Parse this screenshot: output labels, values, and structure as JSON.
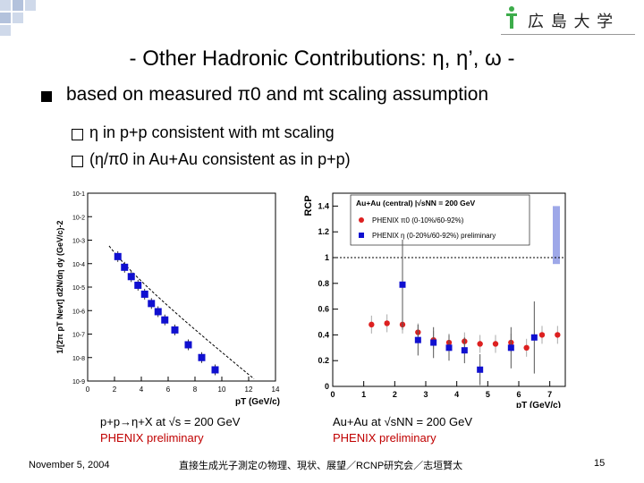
{
  "slide": {
    "title": "- Other Hadronic Contributions: η, η’, ω -",
    "bullet": "based on measured π0 and mt scaling assumption",
    "sub_bullets": [
      "η in p+p consistent with mt scaling",
      "(η/π0 in Au+Au consistent as in p+p)"
    ],
    "logo_text": "広 島 大 学",
    "left_caption": "p+p→η+X at √s = 200 GeV",
    "left_caption_sub": "PHENIX preliminary",
    "right_caption": "Au+Au at √sNN = 200 GeV",
    "right_caption_sub": "PHENIX preliminary",
    "footer_date": "November 5, 2004",
    "footer_center": "直接生成光子測定の物理、現状、展望／RCNP研究会／志垣賢太",
    "page_number": "15"
  },
  "colors": {
    "accent_square": "#cfd9ea",
    "accent_square_dark": "#b3c2dc",
    "logo_green": "#3cac4a",
    "marker_blue": "#1010d0",
    "marker_red": "#dd2020",
    "caption_red": "#c00000"
  },
  "chart_data": [
    {
      "type": "scatter",
      "xlabel": "pT (GeV/c)",
      "ylabel": "1/[2π pT Nevt] d2N/dη dy (GeV/c)-2",
      "yscale": "log",
      "xlim": [
        0,
        14
      ],
      "ylim": [
        1e-09,
        0.1
      ],
      "xticks": [
        "0",
        "2",
        "4",
        "6",
        "8",
        "10",
        "12",
        "14"
      ],
      "yticks": [
        "10-1",
        "10-2",
        "10-3",
        "10-4",
        "10-5",
        "10-6",
        "10-7",
        "10-8",
        "10-9"
      ],
      "series": [
        {
          "name": "",
          "marker": "square",
          "x": [
            2.25,
            2.75,
            3.25,
            3.75,
            4.25,
            4.75,
            5.25,
            5.75,
            6.5,
            7.5,
            8.5,
            9.5
          ],
          "y": [
            0.0002,
            7e-05,
            2.8e-05,
            1.2e-05,
            5e-06,
            2e-06,
            9e-07,
            4e-07,
            1.5e-07,
            3.5e-08,
            1e-08,
            3e-09
          ]
        }
      ]
    },
    {
      "type": "scatter",
      "xlabel": "pT (GeV/c)",
      "ylabel": "RCP",
      "xlim": [
        0,
        7.5
      ],
      "ylim": [
        0,
        1.5
      ],
      "xticks": [
        "0",
        "1",
        "2",
        "3",
        "4",
        "5",
        "6",
        "7"
      ],
      "yticks": [
        "0",
        "0.2",
        "0.4",
        "0.6",
        "0.8",
        "1",
        "1.2",
        "1.4"
      ],
      "legend_title": "Au+Au (central) |√sNN = 200 GeV",
      "series": [
        {
          "name": "PHENIX π0 (0-10%/60-92%)",
          "marker": "circle",
          "x": [
            1.25,
            1.75,
            2.25,
            2.75,
            3.25,
            3.75,
            4.25,
            4.75,
            5.25,
            5.75,
            6.25,
            6.75,
            7.25
          ],
          "y": [
            0.48,
            0.49,
            0.48,
            0.42,
            0.36,
            0.34,
            0.35,
            0.33,
            0.33,
            0.34,
            0.3,
            0.4,
            0.4
          ]
        },
        {
          "name": "PHENIX η (0-20%/60-92%) preliminary",
          "marker": "square",
          "x": [
            2.25,
            2.75,
            3.25,
            3.75,
            4.25,
            4.75,
            5.75,
            6.5
          ],
          "y": [
            0.79,
            0.36,
            0.34,
            0.3,
            0.28,
            0.13,
            0.3,
            0.38
          ]
        }
      ]
    }
  ]
}
